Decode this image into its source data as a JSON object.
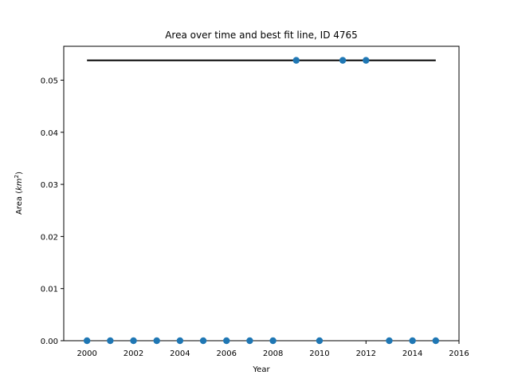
{
  "chart_data": {
    "type": "scatter",
    "title": "Area over time and best fit line, ID 4765",
    "xlabel": "Year",
    "ylabel_main": "Area (",
    "ylabel_unit": "km",
    "ylabel_exp": "2",
    "ylabel_close": ")",
    "xlim": [
      1999,
      2016
    ],
    "ylim": [
      0,
      0.0565
    ],
    "xticks": [
      2000,
      2002,
      2004,
      2006,
      2008,
      2010,
      2012,
      2014,
      2016
    ],
    "yticks": [
      0.0,
      0.01,
      0.02,
      0.03,
      0.04,
      0.05
    ],
    "ytick_labels": [
      "0.00",
      "0.01",
      "0.02",
      "0.03",
      "0.04",
      "0.05"
    ],
    "points": {
      "color": "#1f77b4",
      "x": [
        2000,
        2001,
        2002,
        2003,
        2004,
        2005,
        2006,
        2007,
        2008,
        2009,
        2010,
        2011,
        2012,
        2013,
        2014,
        2015
      ],
      "y": [
        0,
        0,
        0,
        0,
        0,
        0,
        0,
        0,
        0,
        0.0538,
        0,
        0.0538,
        0.0538,
        0,
        0,
        0
      ]
    },
    "fit_line": {
      "color": "#000000",
      "x": [
        2000,
        2015
      ],
      "y": [
        0.0538,
        0.0538
      ]
    },
    "grid": false
  }
}
